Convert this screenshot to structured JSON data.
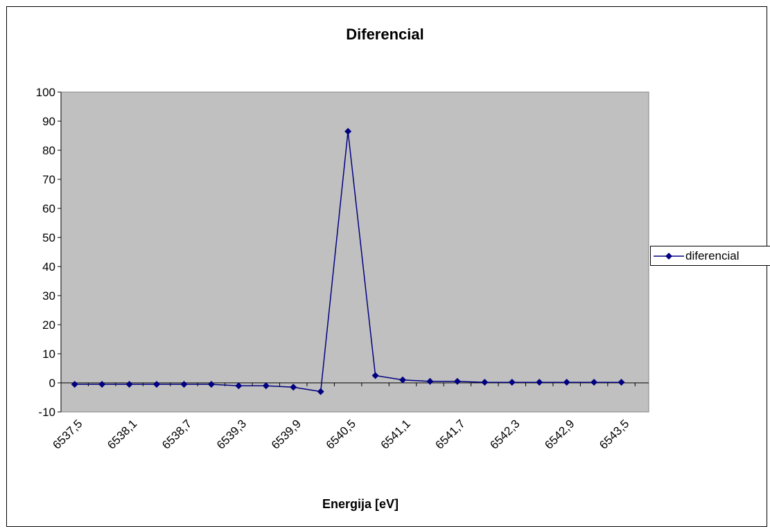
{
  "chart_data": {
    "type": "line",
    "title": "Diferencial",
    "xlabel": "Energija [eV]",
    "ylabel": "",
    "ylim": [
      -10,
      100
    ],
    "ytick_step": 10,
    "y_tick_labels": [
      "-10",
      "0",
      "10",
      "20",
      "30",
      "40",
      "50",
      "60",
      "70",
      "80",
      "90",
      "100"
    ],
    "x": [
      "6537,5",
      "6537,8",
      "6538,1",
      "6538,4",
      "6538,7",
      "6539",
      "6539,3",
      "6539,6",
      "6539,9",
      "6540,2",
      "6540,5",
      "6540,8",
      "6541,1",
      "6541,4",
      "6541,7",
      "6542",
      "6542,3",
      "6542,6",
      "6542,9",
      "6543,2",
      "6543,5"
    ],
    "x_tick_labels": [
      "6537,5",
      "6538,1",
      "6538,7",
      "6539,3",
      "6539,9",
      "6540,5",
      "6541,1",
      "6541,7",
      "6542,3",
      "6542,9",
      "6543,5"
    ],
    "series": [
      {
        "name": "diferencial",
        "color": "#000080",
        "values": [
          -0.5,
          -0.5,
          -0.5,
          -0.5,
          -0.5,
          -0.5,
          -1,
          -1,
          -1.5,
          -3,
          86.5,
          2.5,
          1,
          0.5,
          0.5,
          0.2,
          0.2,
          0.2,
          0.2,
          0.2,
          0.2
        ]
      }
    ],
    "grid": false,
    "legend_position": "right",
    "plot_background": "#c0c0c0"
  }
}
